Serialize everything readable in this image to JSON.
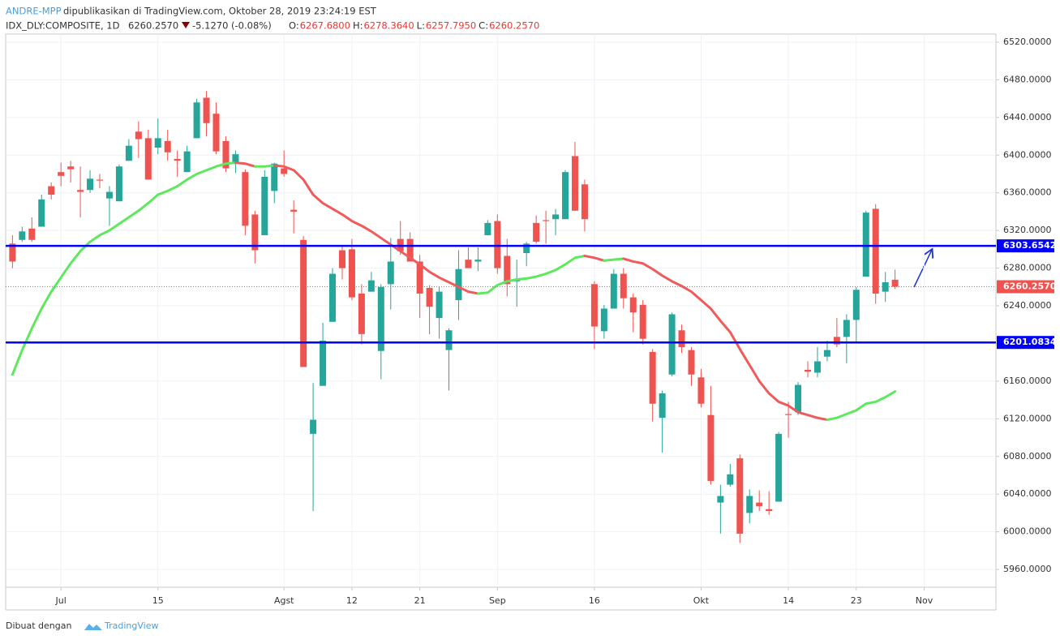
{
  "header": {
    "author": "ANDRE-MPP",
    "published": "dipublikasikan di TradingView.com, Oktober 28, 2019 23:24:19 EST",
    "symbol": "IDX_DLY:COMPOSITE, 1D",
    "price": "6260.2570",
    "change": "-5.1270 (-0.08%)",
    "ohlc": [
      {
        "key": "O:",
        "value": "6267.6800"
      },
      {
        "key": "H:",
        "value": "6278.3640"
      },
      {
        "key": "L:",
        "value": "6257.7950"
      },
      {
        "key": "C:",
        "value": "6260.2570"
      }
    ]
  },
  "footer": {
    "made_with": "Dibuat dengan",
    "brand": "TradingView"
  },
  "chart_data": {
    "type": "candlestick",
    "up_color": "#26a69a",
    "down_color": "#ef5350",
    "grid": true,
    "xlim": [
      -0.7,
      101.4
    ],
    "ylim": [
      5941.1,
      6528.6
    ],
    "xticks": [
      {
        "value": 5,
        "label": "Jul"
      },
      {
        "value": 15,
        "label": "15"
      },
      {
        "value": 28,
        "label": "Agst"
      },
      {
        "value": 35,
        "label": "12"
      },
      {
        "value": 42,
        "label": "21"
      },
      {
        "value": 50,
        "label": "Sep"
      },
      {
        "value": 60,
        "label": "16"
      },
      {
        "value": 71,
        "label": "Okt"
      },
      {
        "value": 80,
        "label": "14"
      },
      {
        "value": 87,
        "label": "23"
      },
      {
        "value": 94,
        "label": "Nov"
      }
    ],
    "yticks": [
      {
        "value": 5960,
        "label": "5960.0000"
      },
      {
        "value": 6000,
        "label": "6000.0000"
      },
      {
        "value": 6040,
        "label": "6040.0000"
      },
      {
        "value": 6080,
        "label": "6080.0000"
      },
      {
        "value": 6120,
        "label": "6120.0000"
      },
      {
        "value": 6160,
        "label": "6160.0000"
      },
      {
        "value": 6200,
        "label": "6200.0000"
      },
      {
        "value": 6240,
        "label": "6240.0000"
      },
      {
        "value": 6280,
        "label": "6280.0000"
      },
      {
        "value": 6320,
        "label": "6320.0000"
      },
      {
        "value": 6360,
        "label": "6360.0000"
      },
      {
        "value": 6400,
        "label": "6400.0000"
      },
      {
        "value": 6440,
        "label": "6440.0000"
      },
      {
        "value": 6480,
        "label": "6480.0000"
      },
      {
        "value": 6520,
        "label": "6520.0000"
      }
    ],
    "open": [
      6306,
      6310,
      6322,
      6324,
      6367,
      6382,
      6388,
      6363,
      6363,
      6374,
      6354,
      6351,
      6394,
      6425,
      6418,
      6408,
      6415,
      6396,
      6382,
      6418,
      6461,
      6444,
      6415,
      6392,
      6382,
      6337,
      6315,
      6362,
      6386,
      6342,
      6310,
      6104,
      6155,
      6223,
      6299,
      6300,
      6253,
      6255,
      6192,
      6263,
      6311,
      6311,
      6287,
      6259,
      6227,
      6193,
      6246,
      6289,
      6287,
      6315,
      6330,
      6293,
      6266,
      6296,
      6328,
      6331,
      6332,
      6332,
      6399,
      6369,
      6263,
      6213,
      6237,
      6274,
      6249,
      6241,
      6191,
      6121,
      6167,
      6214,
      6193,
      6164,
      6124,
      6031,
      6050,
      6078,
      6020,
      6031,
      6024,
      6032,
      6125,
      6127,
      6172,
      6169,
      6186,
      6207,
      6207,
      6225,
      6271,
      6343,
      6255,
      6267.68
    ],
    "high": [
      6315,
      6324,
      6334,
      6358,
      6371,
      6392,
      6394,
      6388,
      6384,
      6380,
      6367,
      6390,
      6417,
      6436,
      6427,
      6439,
      6427,
      6405,
      6410,
      6460,
      6468,
      6456,
      6420,
      6405,
      6385,
      6341,
      6384,
      6392,
      6405,
      6352,
      6314,
      6158,
      6222,
      6280,
      6303,
      6311,
      6263,
      6276,
      6263,
      6312,
      6330,
      6318,
      6294,
      6262,
      6260,
      6216,
      6299,
      6302,
      6302,
      6331,
      6337,
      6311,
      6289,
      6308,
      6336,
      6341,
      6343,
      6384,
      6414,
      6374,
      6266,
      6241,
      6279,
      6280,
      6253,
      6246,
      6194,
      6150,
      6233,
      6220,
      6196,
      6173,
      6155,
      6050,
      6072,
      6082,
      6045,
      6044,
      6043,
      6106,
      6138,
      6159,
      6181,
      6196,
      6203,
      6227,
      6231,
      6260,
      6341,
      6348,
      6276,
      6278.364
    ],
    "low": [
      6280,
      6308,
      6308,
      6324,
      6353,
      6367,
      6371,
      6334,
      6360,
      6365,
      6325,
      6351,
      6394,
      6397,
      6374,
      6401,
      6394,
      6377,
      6382,
      6418,
      6420,
      6401,
      6382,
      6381,
      6315,
      6285,
      6315,
      6349,
      6377,
      6317,
      6175,
      6022,
      6155,
      6223,
      6268,
      6246,
      6199,
      6255,
      6162,
      6236,
      6294,
      6287,
      6227,
      6210,
      6205,
      6150,
      6225,
      6280,
      6277,
      6315,
      6274,
      6250,
      6239,
      6282,
      6306,
      6306,
      6315,
      6332,
      6341,
      6319,
      6194,
      6205,
      6237,
      6237,
      6212,
      6199,
      6117,
      6084,
      6165,
      6190,
      6155,
      6132,
      6050,
      5998,
      6048,
      5988,
      6009,
      6022,
      6018,
      6032,
      6100,
      6124,
      6164,
      6164,
      6181,
      6196,
      6179,
      6200,
      6271,
      6242,
      6244,
      6257.795
    ],
    "close": [
      6287,
      6319,
      6310,
      6353,
      6358,
      6378,
      6385,
      6361,
      6375,
      6373,
      6361,
      6388,
      6410,
      6417,
      6374,
      6418,
      6403,
      6394,
      6404,
      6456,
      6434,
      6404,
      6386,
      6401,
      6325,
      6299,
      6377,
      6391,
      6380,
      6340,
      6175,
      6119,
      6203,
      6274,
      6280,
      6249,
      6210,
      6267,
      6260,
      6287,
      6298,
      6287,
      6253,
      6239,
      6255,
      6214,
      6279,
      6280,
      6289,
      6328,
      6280,
      6263,
      6268,
      6306,
      6308,
      6330,
      6337,
      6382,
      6341,
      6332,
      6218,
      6237,
      6274,
      6248,
      6233,
      6205,
      6136,
      6147,
      6231,
      6196,
      6167,
      6136,
      6054,
      6038,
      6061,
      5998,
      6038,
      6027,
      6022,
      6104,
      6124,
      6156,
      6170,
      6181,
      6193,
      6199,
      6225,
      6257,
      6339,
      6253,
      6265,
      6260.257
    ],
    "ma": {
      "up_color": "#5ee85e",
      "down_color": "#f05a5a",
      "values": [
        6167,
        6193,
        6216,
        6237,
        6255,
        6270,
        6285,
        6298,
        6308,
        6315,
        6320,
        6327,
        6334,
        6341,
        6349,
        6358,
        6362,
        6367,
        6374,
        6380,
        6384,
        6388,
        6391,
        6392,
        6391,
        6388,
        6388,
        6389,
        6388,
        6384,
        6374,
        6358,
        6349,
        6343,
        6337,
        6330,
        6325,
        6319,
        6312,
        6305,
        6298,
        6291,
        6284,
        6276,
        6270,
        6265,
        6260,
        6255,
        6253,
        6254,
        6262,
        6266,
        6268,
        6269,
        6271,
        6274,
        6278,
        6284,
        6291,
        6293,
        6291,
        6288,
        6289,
        6290,
        6287,
        6285,
        6279,
        6272,
        6266,
        6261,
        6255,
        6246,
        6237,
        6224,
        6212,
        6194,
        6177,
        6160,
        6147,
        6138,
        6134,
        6127,
        6124,
        6121,
        6119,
        6121,
        6125,
        6129,
        6136,
        6138,
        6143,
        6149
      ]
    },
    "levels": [
      {
        "value": 6303.6542,
        "color": "#0000ff"
      },
      {
        "value": 6201.0834,
        "color": "#0000ff"
      }
    ],
    "last_price": {
      "value": 6260.257,
      "label": "6260.2570",
      "color": "#ef5350"
    }
  }
}
